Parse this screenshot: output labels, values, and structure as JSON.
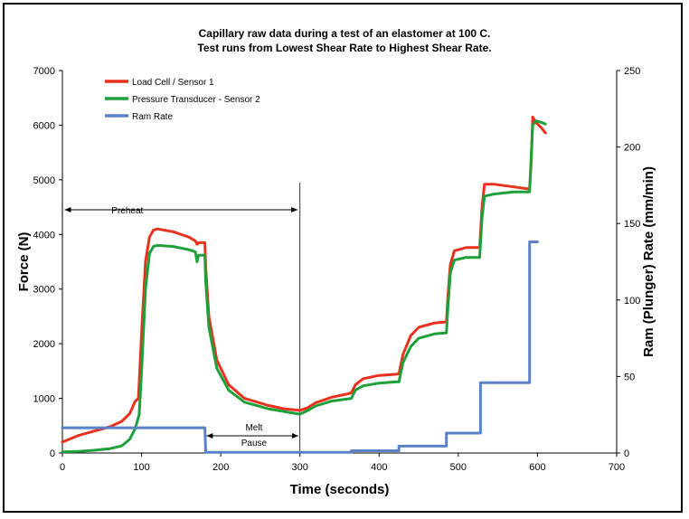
{
  "chart_data": {
    "type": "line",
    "title_line1": "Capillary raw data during a test of an elastomer at 100 C.",
    "title_line2": "Test runs from Lowest Shear Rate to Highest Shear Rate.",
    "xlabel": "Time (seconds)",
    "ylabel_left": "Force (N)",
    "ylabel_right": "Ram (Plunger) Rate (mm/min)",
    "xlim": [
      0,
      700
    ],
    "ylim_left": [
      0,
      7000
    ],
    "ylim_right": [
      0,
      250
    ],
    "x_ticks": [
      "0",
      "100",
      "200",
      "300",
      "400",
      "500",
      "600",
      "700"
    ],
    "y_left_ticks": [
      "0",
      "1000",
      "2000",
      "3000",
      "4000",
      "5000",
      "6000",
      "7000"
    ],
    "y_right_ticks": [
      "0",
      "50",
      "100",
      "150",
      "200",
      "250"
    ],
    "grid": false,
    "legend_placement": "top-left",
    "annotations": {
      "preheat": "Preheat",
      "melt": "Melt",
      "pause": "Pause"
    },
    "series": [
      {
        "name": "Load Cell / Sensor 1",
        "color": "#e8321e",
        "axis": "left",
        "points": [
          [
            0,
            200
          ],
          [
            20,
            320
          ],
          [
            40,
            400
          ],
          [
            60,
            480
          ],
          [
            75,
            580
          ],
          [
            85,
            720
          ],
          [
            92,
            950
          ],
          [
            96,
            1000
          ],
          [
            100,
            2200
          ],
          [
            105,
            3500
          ],
          [
            110,
            3950
          ],
          [
            115,
            4080
          ],
          [
            120,
            4100
          ],
          [
            140,
            4050
          ],
          [
            160,
            3950
          ],
          [
            168,
            3880
          ],
          [
            170,
            3820
          ],
          [
            172,
            3850
          ],
          [
            180,
            3850
          ],
          [
            181,
            3400
          ],
          [
            185,
            2500
          ],
          [
            195,
            1700
          ],
          [
            210,
            1250
          ],
          [
            230,
            1000
          ],
          [
            260,
            870
          ],
          [
            280,
            810
          ],
          [
            300,
            780
          ],
          [
            310,
            830
          ],
          [
            320,
            920
          ],
          [
            340,
            1020
          ],
          [
            360,
            1080
          ],
          [
            365,
            1100
          ],
          [
            370,
            1250
          ],
          [
            380,
            1360
          ],
          [
            400,
            1420
          ],
          [
            420,
            1440
          ],
          [
            425,
            1450
          ],
          [
            430,
            1800
          ],
          [
            440,
            2150
          ],
          [
            450,
            2300
          ],
          [
            470,
            2380
          ],
          [
            485,
            2400
          ],
          [
            487,
            2900
          ],
          [
            490,
            3450
          ],
          [
            495,
            3700
          ],
          [
            510,
            3760
          ],
          [
            527,
            3760
          ],
          [
            530,
            4500
          ],
          [
            533,
            4920
          ],
          [
            545,
            4920
          ],
          [
            570,
            4870
          ],
          [
            590,
            4830
          ],
          [
            592,
            5300
          ],
          [
            594,
            6150
          ],
          [
            598,
            6050
          ],
          [
            605,
            5950
          ],
          [
            610,
            5860
          ]
        ]
      },
      {
        "name": "Pressure Transducer - Sensor 2",
        "color": "#1ea03a",
        "axis": "left",
        "points": [
          [
            0,
            20
          ],
          [
            20,
            30
          ],
          [
            40,
            50
          ],
          [
            60,
            80
          ],
          [
            75,
            130
          ],
          [
            85,
            250
          ],
          [
            92,
            450
          ],
          [
            97,
            700
          ],
          [
            100,
            1500
          ],
          [
            105,
            3000
          ],
          [
            110,
            3650
          ],
          [
            115,
            3780
          ],
          [
            120,
            3800
          ],
          [
            140,
            3780
          ],
          [
            160,
            3720
          ],
          [
            168,
            3680
          ],
          [
            170,
            3500
          ],
          [
            172,
            3620
          ],
          [
            180,
            3620
          ],
          [
            181,
            3150
          ],
          [
            185,
            2300
          ],
          [
            195,
            1550
          ],
          [
            210,
            1150
          ],
          [
            230,
            930
          ],
          [
            260,
            810
          ],
          [
            280,
            760
          ],
          [
            300,
            710
          ],
          [
            310,
            780
          ],
          [
            320,
            860
          ],
          [
            340,
            950
          ],
          [
            360,
            990
          ],
          [
            365,
            1000
          ],
          [
            370,
            1150
          ],
          [
            380,
            1230
          ],
          [
            400,
            1280
          ],
          [
            420,
            1300
          ],
          [
            425,
            1300
          ],
          [
            430,
            1650
          ],
          [
            440,
            1950
          ],
          [
            450,
            2100
          ],
          [
            470,
            2180
          ],
          [
            485,
            2200
          ],
          [
            487,
            2700
          ],
          [
            490,
            3300
          ],
          [
            495,
            3530
          ],
          [
            510,
            3580
          ],
          [
            527,
            3580
          ],
          [
            530,
            4300
          ],
          [
            533,
            4700
          ],
          [
            545,
            4740
          ],
          [
            570,
            4780
          ],
          [
            590,
            4780
          ],
          [
            592,
            5400
          ],
          [
            594,
            6000
          ],
          [
            598,
            6080
          ],
          [
            605,
            6050
          ],
          [
            610,
            6020
          ]
        ]
      },
      {
        "name": "Ram Rate",
        "color": "#5b82c8",
        "axis": "right",
        "points": [
          [
            0,
            16.5
          ],
          [
            180,
            16.5
          ],
          [
            181,
            0.5
          ],
          [
            365,
            0.5
          ],
          [
            365,
            1.5
          ],
          [
            425,
            1.5
          ],
          [
            425,
            4.5
          ],
          [
            485,
            4.5
          ],
          [
            485,
            13
          ],
          [
            528,
            13
          ],
          [
            528,
            46
          ],
          [
            590,
            46
          ],
          [
            590,
            138
          ],
          [
            600,
            138
          ]
        ]
      }
    ]
  }
}
